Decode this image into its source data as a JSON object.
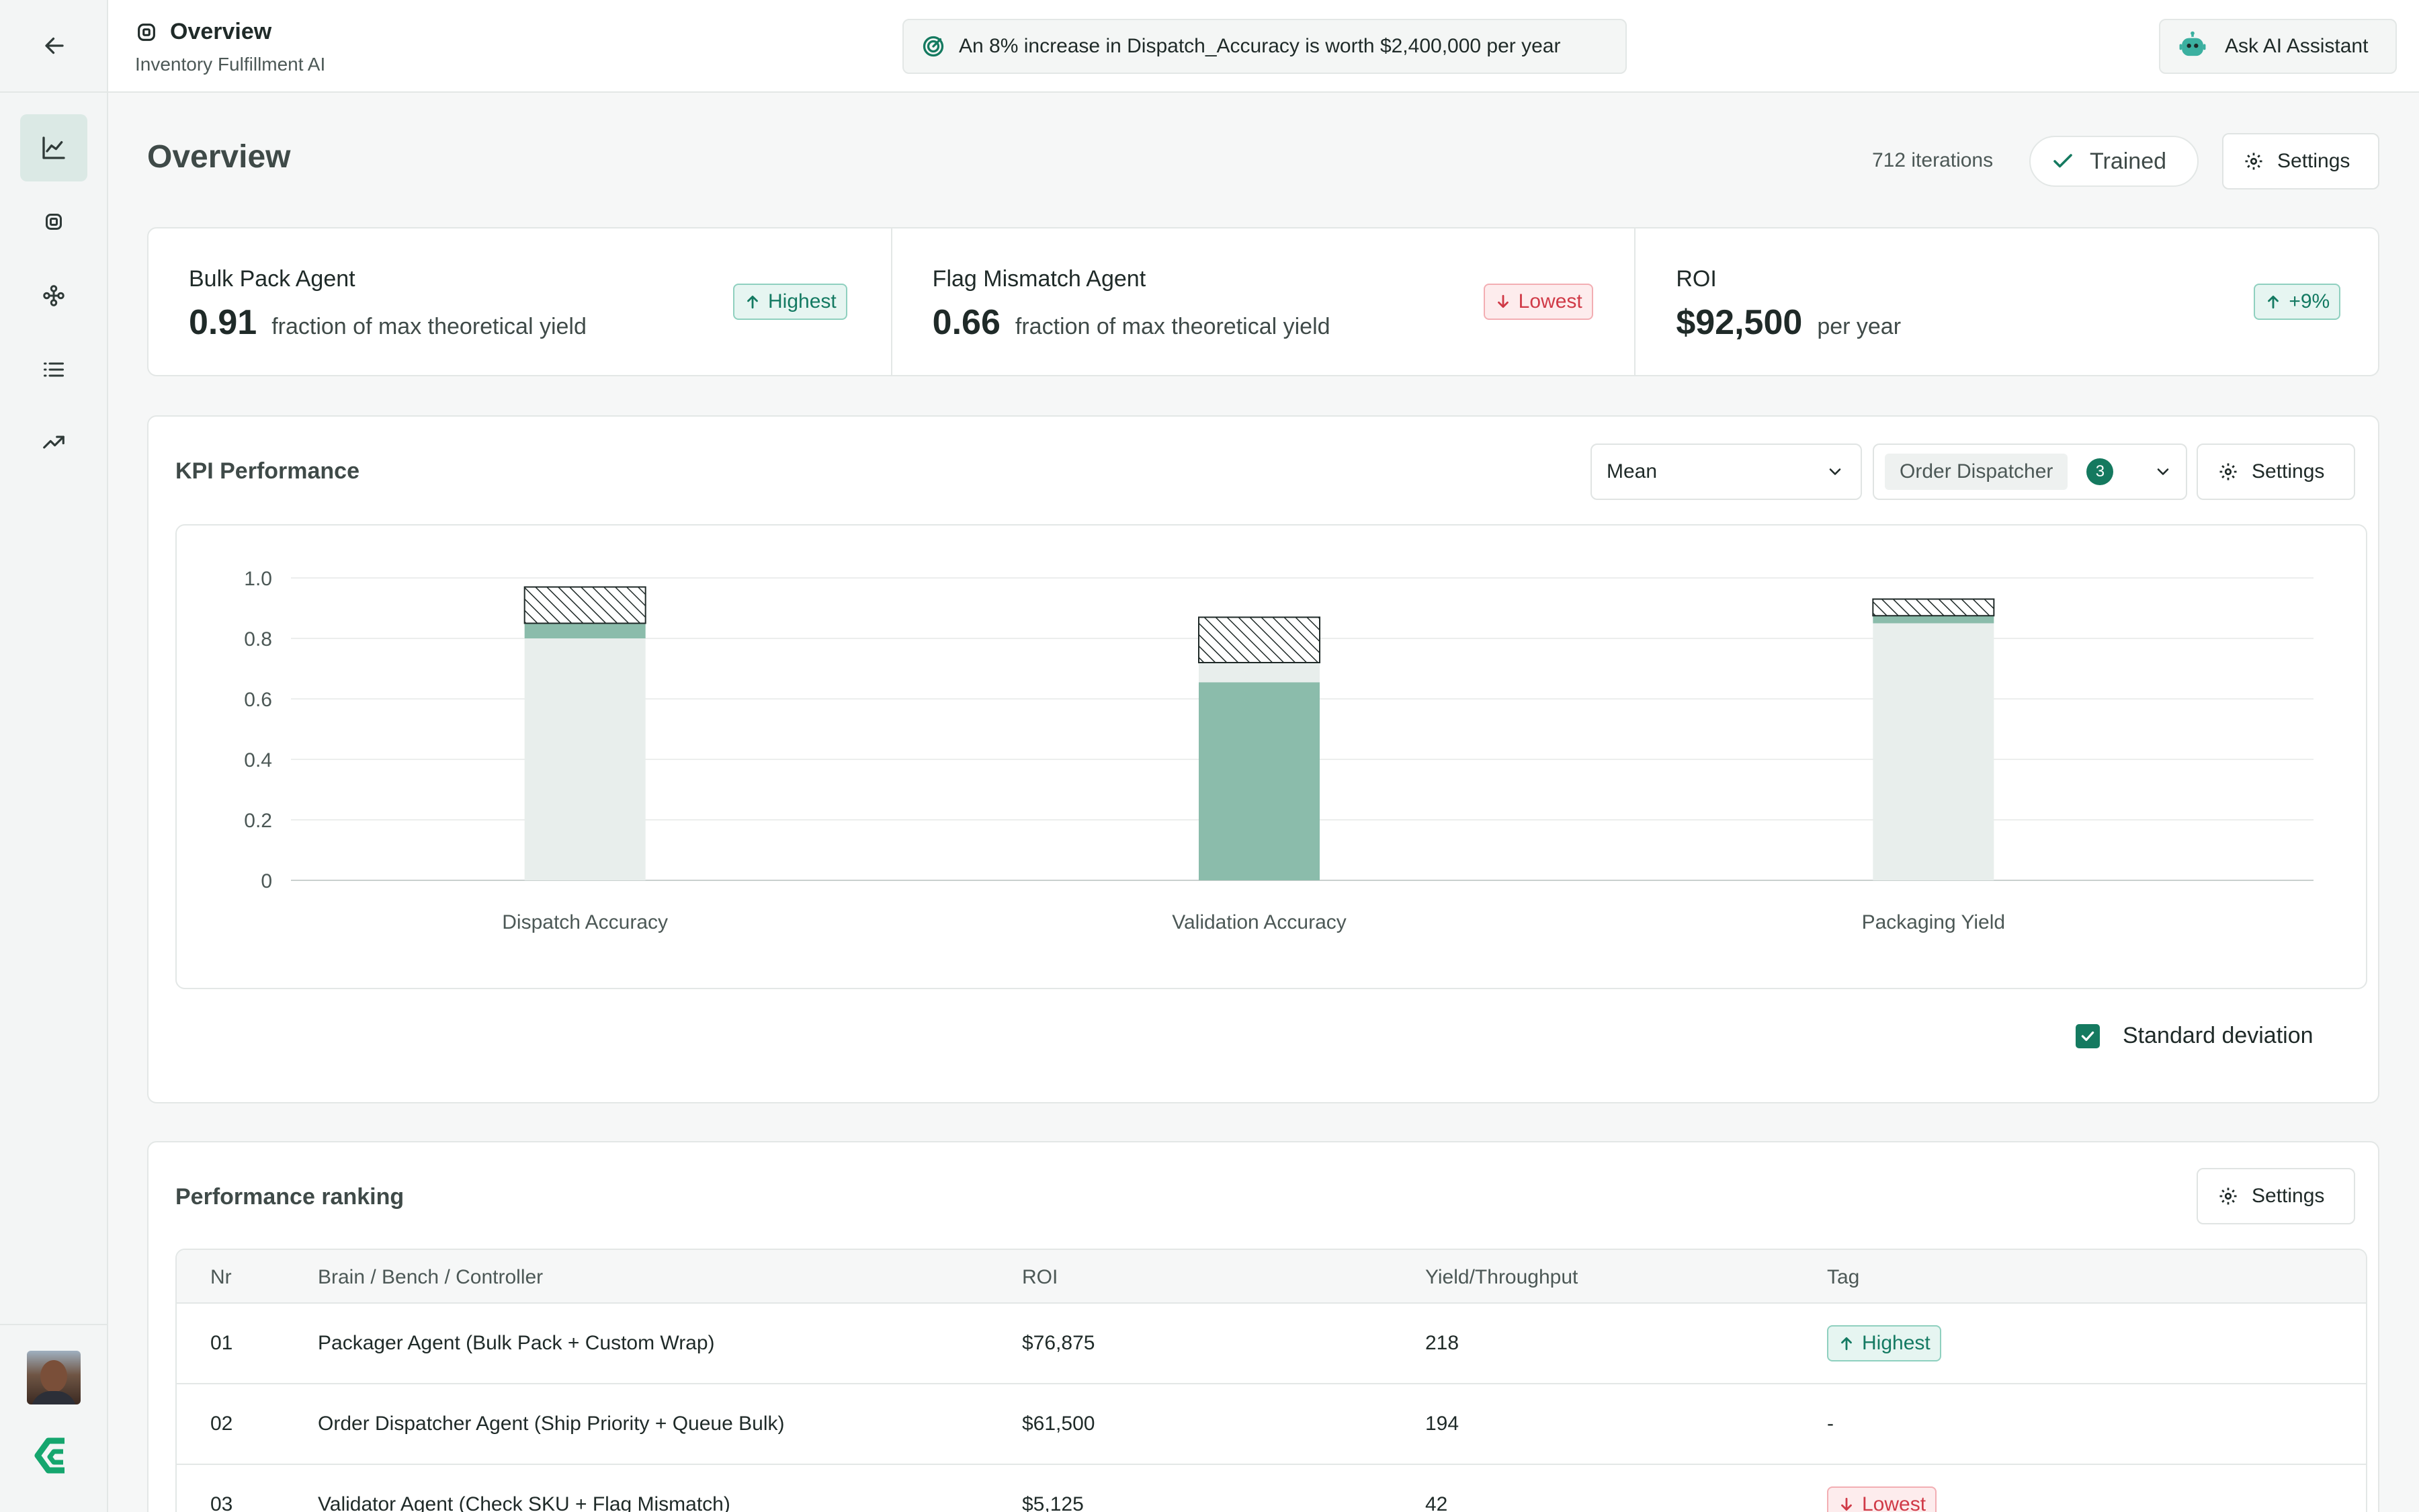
{
  "header": {
    "title": "Overview",
    "subtitle": "Inventory Fulfillment AI",
    "banner": "An 8% increase in Dispatch_Accuracy is worth $2,400,000 per year",
    "assistant_label": "Ask AI Assistant"
  },
  "sidebar": {
    "items": [
      {
        "icon": "line-chart-icon",
        "active": true
      },
      {
        "icon": "chip-icon",
        "active": false
      },
      {
        "icon": "nodes-icon",
        "active": false
      },
      {
        "icon": "list-icon",
        "active": false
      },
      {
        "icon": "trending-up-icon",
        "active": false
      }
    ]
  },
  "page": {
    "title": "Overview",
    "iterations": "712 iterations",
    "status": "Trained",
    "settings_label": "Settings"
  },
  "kpis": [
    {
      "label": "Bulk Pack Agent",
      "value": "0.91",
      "unit": "fraction of max theoretical yield",
      "badge": "Highest",
      "badge_type": "up"
    },
    {
      "label": "Flag Mismatch Agent",
      "value": "0.66",
      "unit": "fraction of max theoretical yield",
      "badge": "Lowest",
      "badge_type": "down"
    },
    {
      "label": "ROI",
      "value": "$92,500",
      "unit": "per year",
      "badge": "+9%",
      "badge_type": "up"
    }
  ],
  "kpi_performance": {
    "title": "KPI Performance",
    "aggregate_select": "Mean",
    "filter_chip": "Order Dispatcher",
    "filter_count": "3",
    "settings_label": "Settings",
    "std_label": "Standard deviation",
    "std_checked": true
  },
  "chart_data": {
    "type": "bar",
    "categories": [
      "Dispatch Accuracy",
      "Validation Accuracy",
      "Packaging Yield"
    ],
    "ylim": [
      0,
      1.0
    ],
    "yticks": [
      "1.0",
      "0.8",
      "0.6",
      "0.4",
      "0.2",
      "0"
    ],
    "grid": true,
    "stacks": [
      {
        "base": 0.8,
        "segments": [
          {
            "to": 0.85,
            "style": "solid-medium"
          },
          {
            "to": 0.97,
            "style": "hatched"
          }
        ]
      },
      {
        "base": 0.0,
        "segments": [
          {
            "to": 0.655,
            "style": "solid-medium"
          },
          {
            "to": 0.72,
            "style": "light"
          },
          {
            "to": 0.87,
            "style": "hatched"
          }
        ]
      },
      {
        "base": 0.85,
        "segments": [
          {
            "to": 0.875,
            "style": "solid-medium"
          },
          {
            "to": 0.93,
            "style": "hatched"
          }
        ]
      }
    ],
    "colors": {
      "light": "#e8eeec",
      "medium": "#8bbcab",
      "hatch": "#1f2a28"
    }
  },
  "ranking": {
    "title": "Performance ranking",
    "settings_label": "Settings",
    "columns": [
      "Nr",
      "Brain / Bench / Controller",
      "ROI",
      "Yield/Throughput",
      "Tag"
    ],
    "rows": [
      {
        "nr": "01",
        "name": "Packager Agent (Bulk Pack + Custom Wrap)",
        "roi": "$76,875",
        "yield": "218",
        "tag": "Highest",
        "tag_type": "up"
      },
      {
        "nr": "02",
        "name": "Order Dispatcher Agent (Ship Priority + Queue Bulk)",
        "roi": "$61,500",
        "yield": "194",
        "tag": "-",
        "tag_type": "none"
      },
      {
        "nr": "03",
        "name": "Validator Agent (Check SKU + Flag Mismatch)",
        "roi": "$5,125",
        "yield": "42",
        "tag": "Lowest",
        "tag_type": "down"
      }
    ]
  }
}
